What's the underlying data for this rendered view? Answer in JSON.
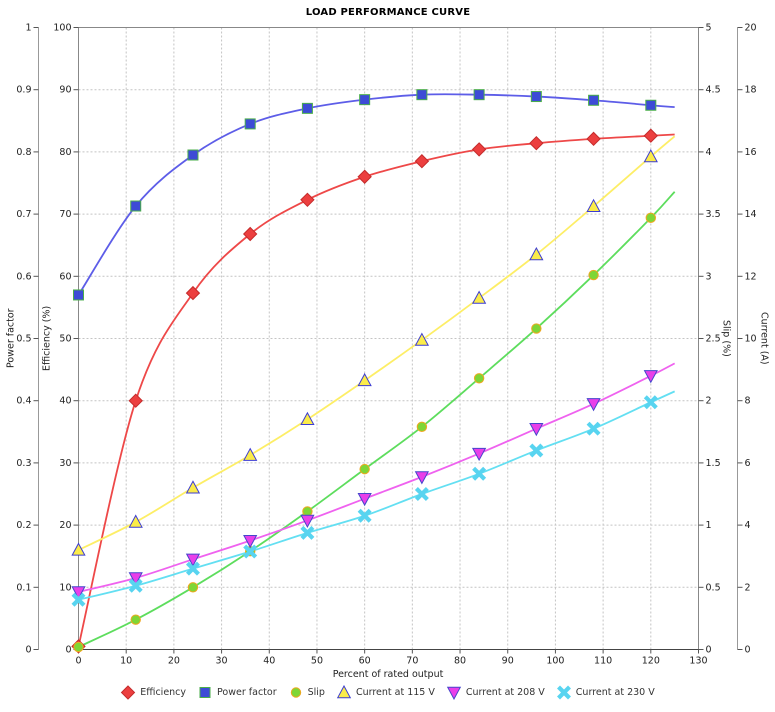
{
  "title": "LOAD PERFORMANCE CURVE",
  "chart_data": {
    "type": "line",
    "title": "LOAD PERFORMANCE CURVE",
    "xlabel": "Percent of rated output",
    "grid": "on",
    "legend_position": "bottom-center",
    "x": [
      0,
      12,
      24,
      36,
      48,
      60,
      72,
      84,
      96,
      108,
      120
    ],
    "fit_line_end_x": 125,
    "axes": {
      "x": {
        "label": "Percent of rated output",
        "min": 0,
        "max": 130,
        "tick_step": 10
      },
      "power_factor": {
        "label": "Power factor",
        "min": 0,
        "max": 1,
        "tick_step": 0.1
      },
      "efficiency": {
        "label": "Efficiency (%)",
        "min": 0,
        "max": 100,
        "tick_step": 10
      },
      "slip": {
        "label": "Slip (%)",
        "min": 0,
        "max": 5,
        "tick_step": 0.5
      },
      "current": {
        "label": "Current (A)",
        "min": 0,
        "max": 20,
        "tick_step": 2
      }
    },
    "series": [
      {
        "name": "Efficiency",
        "axis": "efficiency",
        "marker": "diamond",
        "line_color": "#ee4848",
        "fill": "#ec3f3f",
        "edge": "#c42b2b",
        "values": [
          0.5,
          40.0,
          57.3,
          66.8,
          72.3,
          76.0,
          78.5,
          80.4,
          81.4,
          82.1,
          82.6
        ],
        "fit_end_value": 82.8
      },
      {
        "name": "Power factor",
        "axis": "power_factor",
        "marker": "square",
        "line_color": "#5d5de8",
        "fill": "#3d4bd6",
        "edge": "#4aae4a",
        "values": [
          0.57,
          0.713,
          0.795,
          0.845,
          0.87,
          0.884,
          0.892,
          0.892,
          0.889,
          0.883,
          0.875
        ],
        "fit_end_value": 0.872
      },
      {
        "name": "Slip",
        "axis": "slip",
        "marker": "circle",
        "line_color": "#5ddd5d",
        "fill": "#7ed636",
        "edge": "#efa720",
        "values": [
          0.02,
          0.24,
          0.5,
          0.79,
          1.11,
          1.45,
          1.79,
          2.18,
          2.58,
          3.01,
          3.47
        ],
        "fit_end_value": 3.68
      },
      {
        "name": "Current at 115 V",
        "axis": "current",
        "marker": "triangle-up",
        "line_color": "#fdee66",
        "fill": "#fbec49",
        "edge": "#3c3cd2",
        "values": [
          3.2,
          4.1,
          5.2,
          6.25,
          7.4,
          8.65,
          9.95,
          11.3,
          12.7,
          14.25,
          15.85
        ],
        "fit_end_value": 16.5
      },
      {
        "name": "Current at 208 V",
        "axis": "current",
        "marker": "triangle-down",
        "line_color": "#ef62ef",
        "fill": "#e93fe9",
        "edge": "#4646cc",
        "values": [
          1.85,
          2.3,
          2.9,
          3.5,
          4.15,
          4.85,
          5.55,
          6.3,
          7.1,
          7.9,
          8.8
        ],
        "fit_end_value": 9.2
      },
      {
        "name": "Current at 230 V",
        "axis": "current",
        "marker": "x",
        "line_color": "#63dff2",
        "fill": "#58d4f0",
        "edge": "#58d4f0",
        "values": [
          1.6,
          2.05,
          2.6,
          3.15,
          3.75,
          4.3,
          5.0,
          5.65,
          6.4,
          7.1,
          7.95
        ],
        "fit_end_value": 8.3
      }
    ],
    "style": {
      "grid_color": "#c4c4c4",
      "border_color": "#888888",
      "axis_line_color": "#999999",
      "tick_color": "#555555",
      "background": "#ffffff"
    }
  }
}
